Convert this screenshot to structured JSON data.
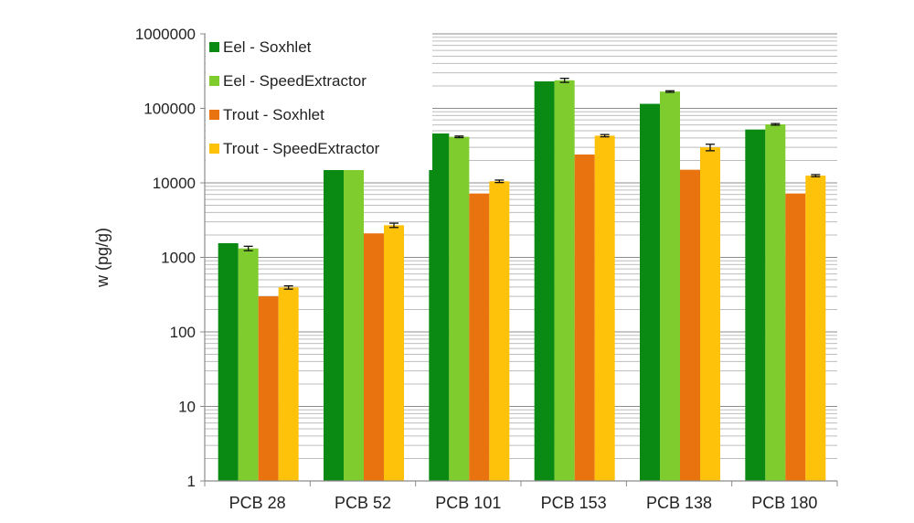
{
  "chart_data": {
    "type": "bar",
    "title": "",
    "xlabel": "",
    "ylabel": "w (pg/g)",
    "yscale": "log",
    "ylim": [
      1,
      1000000
    ],
    "yticks": [
      1,
      10,
      100,
      1000,
      10000,
      100000,
      1000000
    ],
    "ytick_labels": [
      "1",
      "10",
      "100",
      "1000",
      "10000",
      "100000",
      "1000000"
    ],
    "grid": "horizontal, major and minor",
    "legend_position": "top-left",
    "categories": [
      "PCB 28",
      "PCB 52",
      "PCB 101",
      "PCB 153",
      "PCB 138",
      "PCB 180"
    ],
    "series": [
      {
        "name": "Eel - Soxhlet",
        "color": "#0a8a12",
        "values": [
          1550,
          19000,
          46000,
          230000,
          115000,
          52000
        ],
        "errors": [
          0,
          0,
          0,
          0,
          0,
          0
        ]
      },
      {
        "name": "Eel - SpeedExtractor",
        "color": "#7fcc2e",
        "values": [
          1320,
          16500,
          41500,
          238000,
          168000,
          61000
        ],
        "errors": [
          90,
          500,
          1000,
          15000,
          4000,
          1500
        ]
      },
      {
        "name": "Trout - Soxhlet",
        "color": "#e8730f",
        "values": [
          300,
          2100,
          7200,
          24000,
          15000,
          7200
        ],
        "errors": [
          0,
          0,
          0,
          0,
          0,
          0
        ]
      },
      {
        "name": "Trout - SpeedExtractor",
        "color": "#ffc20a",
        "values": [
          395,
          2700,
          10500,
          43000,
          30000,
          12500
        ],
        "errors": [
          20,
          180,
          400,
          1500,
          3000,
          400
        ]
      }
    ]
  }
}
